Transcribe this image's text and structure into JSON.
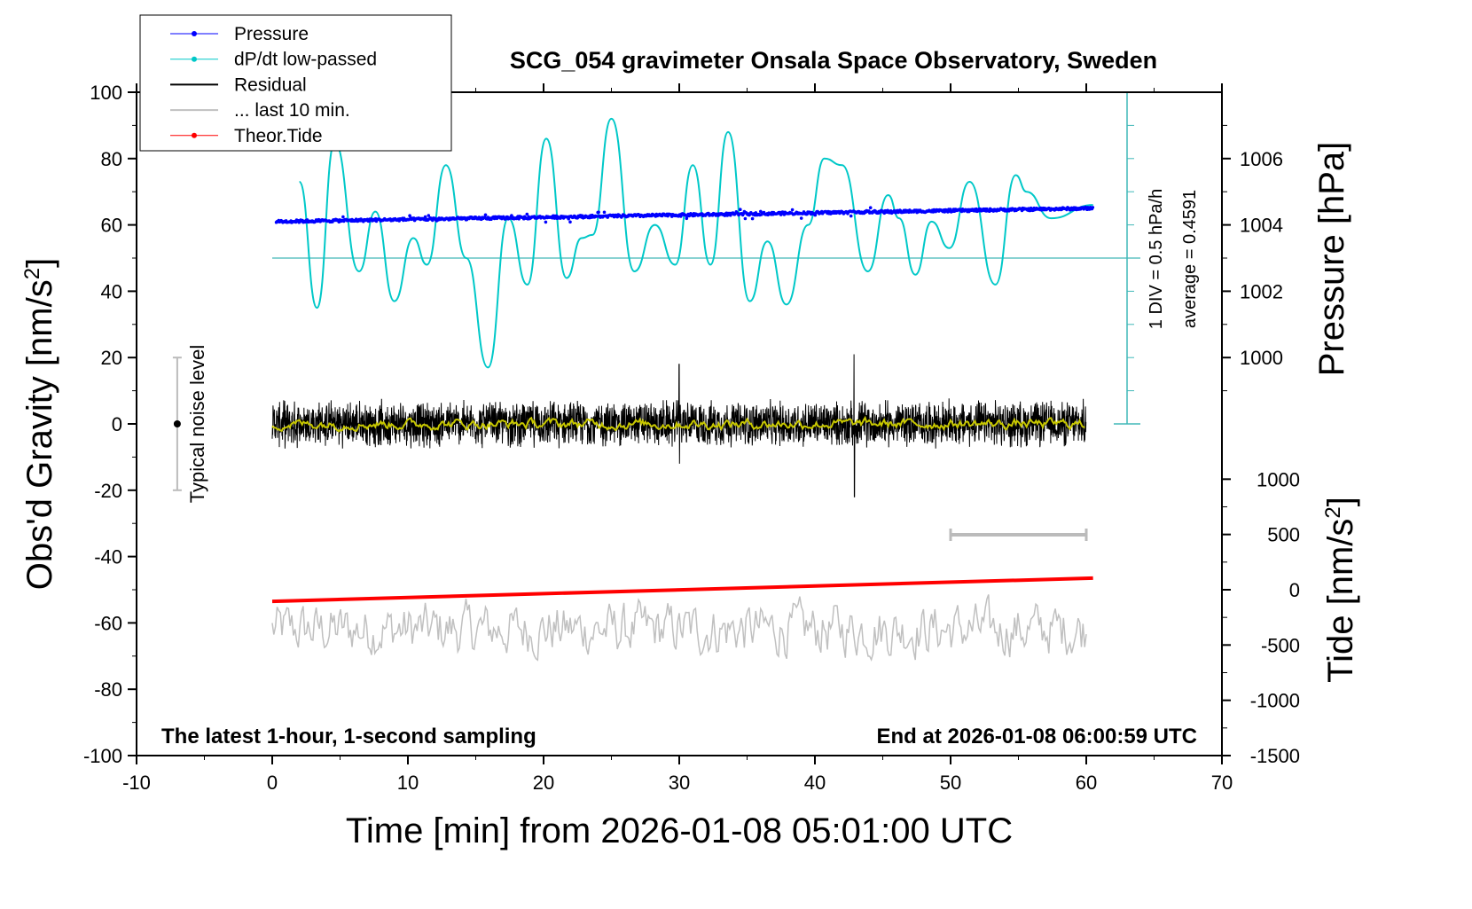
{
  "chart_data": {
    "type": "line",
    "title": "SCG_054 gravimeter Onsala Space Observatory, Sweden",
    "xlabel": "Time [min] from 2026-01-08 05:01:00 UTC",
    "ylabel_left": "Obs'd Gravity [nm/s",
    "ylabel_left_sup": "2",
    "ylabel_left_end": "]",
    "ylabel_right_pressure": "Pressure [hPa]",
    "ylabel_right_tide": "Tide [nm/s",
    "ylabel_right_tide_sup": "2",
    "ylabel_right_tide_end": "]",
    "xlim": [
      -10,
      70
    ],
    "ylim": [
      -100,
      100
    ],
    "xticks": [
      "-10",
      "0",
      "10",
      "20",
      "30",
      "40",
      "50",
      "60",
      "70"
    ],
    "yticks": [
      "-100",
      "-80",
      "-60",
      "-40",
      "-20",
      "0",
      "20",
      "40",
      "60",
      "80",
      "100"
    ],
    "pressure_ticks": [
      "1000",
      "1002",
      "1004",
      "1006"
    ],
    "tide_ticks": [
      "-1500",
      "-1000",
      "-500",
      "0",
      "500",
      "1000"
    ],
    "annotation_left": "The latest 1-hour, 1-second sampling",
    "annotation_right": "End at 2026-01-08 06:00:59 UTC",
    "noise_label": "Typical noise level",
    "noise_range": [
      -20,
      20
    ],
    "div_label": "1 DIV = 0.5 hPa/h",
    "average_label": "average = 0.4591",
    "last10_bar_x": [
      50,
      60
    ],
    "legend": [
      {
        "label": "Pressure",
        "color": "#0000ff",
        "marker": true
      },
      {
        "label": "dP/dt low-passed",
        "color": "#00c8c8",
        "marker": true
      },
      {
        "label": "Residual",
        "color": "#000000",
        "marker": false
      },
      {
        "label": "... last 10 min.",
        "color": "#c0c0c0",
        "marker": false
      },
      {
        "label": "Theor.Tide",
        "color": "#ff0000",
        "marker": true
      }
    ],
    "series": [
      {
        "name": "Pressure",
        "unit": "hPa",
        "x_range": [
          0.3,
          60.5
        ],
        "start": 1004.1,
        "end": 1004.5,
        "scatter": 0.08
      },
      {
        "name": "dP/dt low-passed",
        "unit": "hPa/h",
        "zero_at_gravity": 50,
        "div_hpa_h": 0.5,
        "x": [
          2,
          3.3,
          4.6,
          6.4,
          7.6,
          9,
          10.4,
          11.4,
          12.8,
          14.3,
          15.9,
          17.4,
          18.8,
          20.2,
          21.7,
          22.8,
          23.6,
          25,
          26.7,
          28.2,
          29.7,
          31,
          32.3,
          33.6,
          35.2,
          36.5,
          37.9,
          39.5,
          40.7,
          42,
          43.9,
          45.4,
          46.2,
          47.4,
          48.6,
          49.9,
          51.4,
          53.3,
          54.8,
          55.6,
          57.4,
          60.5
        ],
        "y_gravity": [
          73,
          35,
          85,
          46,
          64,
          37,
          56,
          48,
          78,
          50,
          17,
          62,
          42,
          86,
          44,
          56,
          57,
          92,
          46,
          60,
          48,
          78,
          48,
          88,
          37,
          55,
          36,
          60,
          80,
          78,
          46,
          69,
          62,
          45,
          61,
          53,
          73,
          42,
          75,
          70,
          62,
          66
        ]
      },
      {
        "name": "Residual",
        "x_range": [
          0,
          60
        ],
        "amplitude": 6,
        "spikes": [
          {
            "x": 30,
            "max": 18,
            "min": -12
          },
          {
            "x": 42.9,
            "max": 21,
            "min": -22
          }
        ]
      },
      {
        "name": "Residual smoothed",
        "color": "#c8c800",
        "amplitude": 2
      },
      {
        "name": "... last 10 min.",
        "x_range": [
          0,
          60
        ],
        "center": -62,
        "amplitude": 8
      },
      {
        "name": "Theor.Tide",
        "unit": "nm/s2",
        "x_range": [
          0,
          60.5
        ],
        "start": -105,
        "end": 105
      }
    ]
  }
}
